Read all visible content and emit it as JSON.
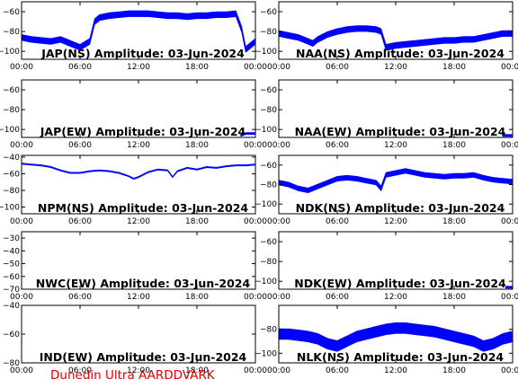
{
  "footer": "Dunedin Ultra AARDDVARK",
  "colors": {
    "trace": "#0000ff",
    "footer": "#e00000",
    "axes": "#000000"
  },
  "chart_data": [
    {
      "type": "line",
      "title": "JAP(NS) Amplitude: 03-Jun-2024",
      "ylim": [
        -108,
        -50
      ],
      "yticks": [
        -100,
        -80,
        -60
      ],
      "xticks": [
        "00:00",
        "06:00",
        "12:00",
        "18:00",
        "00:00"
      ],
      "x": [
        0,
        1,
        2,
        3,
        4,
        5,
        6,
        7,
        7.5,
        8,
        9,
        10,
        11,
        12,
        13,
        14,
        15,
        16,
        17,
        18,
        19,
        20,
        21,
        22,
        22.6,
        23,
        24
      ],
      "y": [
        -86,
        -88,
        -89,
        -90,
        -88,
        -92,
        -96,
        -90,
        -70,
        -66,
        -64,
        -63,
        -62,
        -62,
        -62,
        -63,
        -64,
        -64,
        -65,
        -64,
        -64,
        -63,
        -63,
        -62,
        -78,
        -98,
        -90
      ],
      "band": 6
    },
    {
      "type": "line",
      "title": "NAA(NS) Amplitude: 03-Jun-2024",
      "ylim": [
        -108,
        -50
      ],
      "yticks": [
        -100,
        -80,
        -60
      ],
      "xticks": [
        "00:00",
        "06:00",
        "12:00",
        "18:00",
        "00:00"
      ],
      "x": [
        0,
        1,
        2,
        3,
        3.5,
        4,
        5,
        6,
        7,
        8,
        9,
        10,
        10.5,
        11,
        12,
        13,
        14,
        15,
        16,
        17,
        18,
        19,
        20,
        21,
        22,
        23,
        24
      ],
      "y": [
        -82,
        -84,
        -86,
        -90,
        -92,
        -88,
        -83,
        -80,
        -78,
        -77,
        -77,
        -78,
        -80,
        -96,
        -94,
        -93,
        -92,
        -91,
        -90,
        -89,
        -89,
        -88,
        -88,
        -86,
        -84,
        -82,
        -82
      ],
      "band": 6
    },
    {
      "type": "line",
      "title": "JAP(EW) Amplitude: 03-Jun-2024",
      "ylim": [
        -108,
        -50
      ],
      "yticks": [
        -100,
        -80,
        -60
      ],
      "xticks": [
        "00:00",
        "06:00",
        "12:00",
        "18:00",
        "00:00"
      ],
      "x": [
        22.5,
        23,
        24
      ],
      "y": [
        -106,
        -104,
        -104
      ],
      "band": 2
    },
    {
      "type": "line",
      "title": "NAA(EW) Amplitude: 03-Jun-2024",
      "ylim": [
        -108,
        -50
      ],
      "yticks": [
        -100,
        -80,
        -60
      ],
      "xticks": [
        "00:00",
        "06:00",
        "12:00",
        "18:00",
        "00:00"
      ],
      "x": [
        23,
        24
      ],
      "y": [
        -106,
        -106
      ],
      "band": 2
    },
    {
      "type": "line",
      "title": "NPM(NS) Amplitude: 03-Jun-2024",
      "ylim": [
        -108,
        -38
      ],
      "yticks": [
        -100,
        -80,
        -60,
        -40
      ],
      "xticks": [
        "00:00",
        "06:00",
        "12:00",
        "18:00",
        "00:00"
      ],
      "x": [
        0,
        1,
        2,
        3,
        4,
        5,
        6,
        7,
        8,
        9,
        10,
        11,
        11.5,
        12,
        13,
        14,
        15,
        15.5,
        16,
        17,
        18,
        19,
        20,
        21,
        22,
        23,
        24
      ],
      "y": [
        -48,
        -49,
        -50,
        -52,
        -56,
        -59,
        -59,
        -57,
        -56,
        -57,
        -59,
        -63,
        -66,
        -64,
        -58,
        -55,
        -56,
        -64,
        -57,
        -53,
        -55,
        -52,
        -53,
        -51,
        -50,
        -50,
        -49
      ],
      "band": 1.5
    },
    {
      "type": "line",
      "title": "NDK(NS) Amplitude: 03-Jun-2024",
      "ylim": [
        -110,
        -50
      ],
      "yticks": [
        -100,
        -80,
        -60
      ],
      "xticks": [
        "00:00",
        "06:00",
        "12:00",
        "18:00",
        "00:00"
      ],
      "x": [
        0,
        1,
        2,
        3,
        4,
        5,
        6,
        7,
        8,
        9,
        10,
        10.5,
        11,
        12,
        13,
        14,
        15,
        16,
        17,
        18,
        19,
        20,
        21,
        22,
        23,
        24
      ],
      "y": [
        -78,
        -80,
        -84,
        -86,
        -82,
        -78,
        -74,
        -73,
        -74,
        -76,
        -78,
        -84,
        -70,
        -68,
        -66,
        -68,
        -70,
        -71,
        -72,
        -71,
        -71,
        -70,
        -73,
        -75,
        -76,
        -77
      ],
      "band": 5
    },
    {
      "type": "line",
      "title": "NWC(EW) Amplitude: 03-Jun-2024",
      "ylim": [
        -70,
        -25
      ],
      "yticks": [
        -70,
        -60,
        -50,
        -40,
        -30
      ],
      "xticks": [
        "00:00",
        "06:00",
        "12:00",
        "18:00",
        "00:00"
      ],
      "x": [],
      "y": [],
      "band": 0
    },
    {
      "type": "line",
      "title": "NDK(EW) Amplitude: 03-Jun-2024",
      "ylim": [
        -108,
        -50
      ],
      "yticks": [
        -100,
        -80,
        -60
      ],
      "xticks": [
        "00:00",
        "06:00",
        "12:00",
        "18:00",
        "00:00"
      ],
      "x": [
        23.3,
        24
      ],
      "y": [
        -106,
        -106
      ],
      "band": 2
    },
    {
      "type": "line",
      "title": "IND(EW) Amplitude: 03-Jun-2024",
      "ylim": [
        -80,
        -40
      ],
      "yticks": [
        -80,
        -60,
        -40
      ],
      "xticks": [
        "00:00",
        "06:00",
        "12:00",
        "18:00",
        "00:00"
      ],
      "x": [],
      "y": [],
      "band": 0
    },
    {
      "type": "line",
      "title": "NLK(NS) Amplitude: 03-Jun-2024",
      "ylim": [
        -108,
        -60
      ],
      "yticks": [
        -100,
        -80
      ],
      "xticks": [
        "00:00",
        "06:00",
        "12:00",
        "18:00",
        "00:00"
      ],
      "x": [
        0,
        1,
        2,
        3,
        4,
        5,
        6,
        7,
        8,
        9,
        10,
        11,
        12,
        13,
        14,
        15,
        16,
        17,
        18,
        19,
        20,
        21,
        22,
        23,
        24
      ],
      "y": [
        -84,
        -84,
        -85,
        -86,
        -88,
        -92,
        -94,
        -90,
        -86,
        -84,
        -82,
        -80,
        -79,
        -79,
        -80,
        -81,
        -82,
        -84,
        -86,
        -88,
        -90,
        -94,
        -92,
        -88,
        -86
      ],
      "band": 9
    }
  ]
}
